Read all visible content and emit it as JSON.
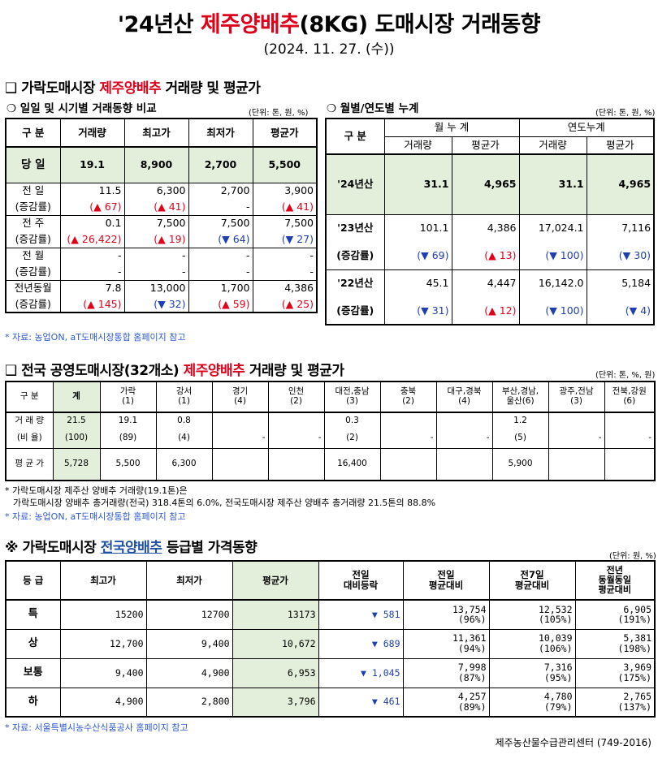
{
  "header": {
    "title_pre": "'24년산 ",
    "title_red": "제주양배추",
    "title_post": "(8KG) 도매시장 거래동향",
    "date": "(2024. 11. 27. (수))"
  },
  "section1": {
    "title_pre": "❑ 가락도매시장 ",
    "title_red": "제주양배추",
    "title_post": " 거래량 및 평균가",
    "left_sub": "❍ 일일 및 시기별 거래동향 비교",
    "left_unit": "(단위: 톤, 원, %)",
    "right_sub": "❍ 월별/연도별 누계",
    "right_unit": "(단위: 톤, 원, %)",
    "left_headers": [
      "구  분",
      "거래량",
      "최고가",
      "최저가",
      "평균가"
    ],
    "today": {
      "label": "당  일",
      "values": [
        "19.1",
        "8,900",
        "2,700",
        "5,500"
      ]
    },
    "rows": [
      {
        "label": "전  일",
        "sublabel": "(증감률)",
        "values": [
          "11.5",
          "6,300",
          "2,700",
          "3,900"
        ],
        "changes": [
          "(▲ 67)",
          "(▲ 41)",
          "-",
          "(▲ 41)"
        ]
      },
      {
        "label": "전  주",
        "sublabel": "(증감률)",
        "values": [
          "0.1",
          "7,500",
          "7,500",
          "7,500"
        ],
        "changes": [
          "(▲ 26,422)",
          "(▲ 19)",
          "(▼ 64)",
          "(▼ 27)"
        ]
      },
      {
        "label": "전  월",
        "sublabel": "(증감률)",
        "values": [
          "-",
          "-",
          "-",
          "-"
        ],
        "changes": [
          "-",
          "-",
          "-",
          "-"
        ]
      },
      {
        "label": "전년동월",
        "sublabel": "(증감률)",
        "values": [
          "7.8",
          "13,000",
          "1,700",
          "4,386"
        ],
        "changes": [
          "(▲ 145)",
          "(▼ 32)",
          "(▲ 59)",
          "(▲ 25)"
        ]
      }
    ],
    "right_headers": {
      "label": "구  분",
      "month": "월 누 계",
      "year": "연도누계",
      "vol": "거래량",
      "avg": "평균가"
    },
    "right_rows": [
      {
        "label": "'24년산",
        "values": [
          "31.1",
          "4,965",
          "31.1",
          "4,965"
        ]
      },
      {
        "label": "'23년산",
        "sublabel": "(증감률)",
        "values": [
          "101.1",
          "4,386",
          "17,024.1",
          "7,116"
        ],
        "changes": [
          "(▼ 69)",
          "(▲ 13)",
          "(▼ 100)",
          "(▼ 30)"
        ]
      },
      {
        "label": "'22년산",
        "sublabel": "(증감률)",
        "values": [
          "45.1",
          "4,447",
          "16,142.0",
          "5,184"
        ],
        "changes": [
          "(▼ 31)",
          "(▲ 12)",
          "(▼ 100)",
          "(▼ 4)"
        ]
      }
    ],
    "note": "* 자료: 농업ON, aT도매시장통합 홈페이지 참고"
  },
  "section2": {
    "title_pre": "❑ 전국 공영도매시장(32개소) ",
    "title_red": "제주양배추",
    "title_post": " 거래량 및 평균가",
    "unit": "(단위: 톤, %, 원)",
    "headers": [
      {
        "name": "구  분",
        "sub": ""
      },
      {
        "name": "계",
        "sub": ""
      },
      {
        "name": "가락",
        "sub": "(1)"
      },
      {
        "name": "강서",
        "sub": "(1)"
      },
      {
        "name": "경기",
        "sub": "(4)"
      },
      {
        "name": "인천",
        "sub": "(2)"
      },
      {
        "name": "대전,충남",
        "sub": "(3)"
      },
      {
        "name": "충북",
        "sub": "(2)"
      },
      {
        "name": "대구,경북",
        "sub": "(4)"
      },
      {
        "name": "부산,경남,",
        "sub": "울산(6)"
      },
      {
        "name": "광주,전남",
        "sub": "(3)"
      },
      {
        "name": "전북,강원",
        "sub": "(6)"
      }
    ],
    "volume_label": "거 래 량",
    "volume": [
      "21.5",
      "19.1",
      "0.8",
      "",
      "",
      "0.3",
      "",
      "",
      "1.2",
      "",
      ""
    ],
    "ratio_label": "(비 율)",
    "ratio": [
      "(100)",
      "(89)",
      "(4)",
      "-",
      "-",
      "(2)",
      "-",
      "-",
      "(5)",
      "-",
      "-"
    ],
    "avg_label": "평 균 가",
    "avg": [
      "5,728",
      "5,500",
      "6,300",
      "",
      "",
      "16,400",
      "",
      "",
      "5,900",
      "",
      ""
    ],
    "note1": "* 가락도매시장 제주산 양배추 거래량(19.1톤)은",
    "note2": "가락도매시장 양배추 총거래량(전국) 318.4톤의 6.0%, 전국도매시장 제주산 양배추 총거래량 21.5톤의 88.8%",
    "note3": "* 자료: 농업ON, aT도매시장통합 홈페이지 참고"
  },
  "section3": {
    "title_pre": "※ 가락도매시장 ",
    "title_blue": "전국양배추",
    "title_post": " 등급별 가격동향",
    "unit": "(단위: 원, %)",
    "headers": [
      "등  급",
      "최고가",
      "최저가",
      "평균가",
      "전일\n대비등락",
      "전일\n평균대비",
      "전7일\n평균대비",
      "전년\n동월동일\n평균대비"
    ],
    "rows": [
      {
        "grade": "특",
        "max": "15200",
        "min": "12700",
        "avg": "13173",
        "diff": "▼ 581",
        "prev": "13,754",
        "prev_pct": "(96%)",
        "week": "12,532",
        "week_pct": "(105%)",
        "year": "6,905",
        "year_pct": "(191%)"
      },
      {
        "grade": "상",
        "max": "12,700",
        "min": "9,400",
        "avg": "10,672",
        "diff": "▼ 689",
        "prev": "11,361",
        "prev_pct": "(94%)",
        "week": "10,039",
        "week_pct": "(106%)",
        "year": "5,381",
        "year_pct": "(198%)"
      },
      {
        "grade": "보통",
        "max": "9,400",
        "min": "4,900",
        "avg": "6,953",
        "diff": "▼ 1,045",
        "prev": "7,998",
        "prev_pct": "(87%)",
        "week": "7,316",
        "week_pct": "(95%)",
        "year": "3,969",
        "year_pct": "(175%)"
      },
      {
        "grade": "하",
        "max": "4,900",
        "min": "2,800",
        "avg": "3,796",
        "diff": "▼ 461",
        "prev": "4,257",
        "prev_pct": "(89%)",
        "week": "4,780",
        "week_pct": "(79%)",
        "year": "2,765",
        "year_pct": "(137%)"
      }
    ],
    "note": "* 자료: 서울특별시농수산식품공사 홈페이지 참고",
    "footer": "제주농산물수급관리센터 (749-2016)"
  },
  "colors": {
    "red": "#e0001a",
    "blue": "#1f3fb0",
    "green_bg": "#e3eedb",
    "note_blue": "#2f5bd0"
  }
}
